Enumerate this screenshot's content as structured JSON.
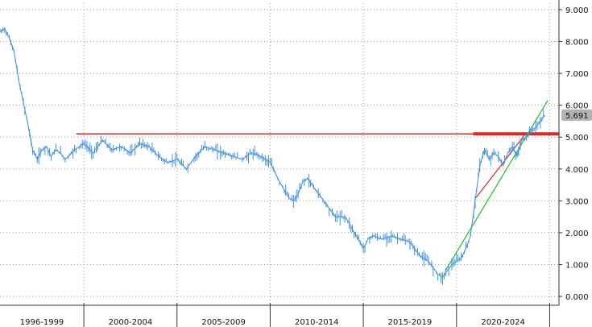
{
  "chart_data": {
    "type": "line",
    "title": "",
    "xlabel": "",
    "ylabel": "",
    "ylim": [
      -0.2,
      9.2
    ],
    "grid": true,
    "y_ticks": [
      "0.000",
      "1.000",
      "2.000",
      "3.000",
      "4.000",
      "5.000",
      "6.000",
      "7.000",
      "8.000",
      "9.000"
    ],
    "x_ticks": [
      "1996-1999",
      "2000-2004",
      "2005-2009",
      "2010-2014",
      "2015-2019",
      "2020-2024"
    ],
    "last_value_label": "5.691",
    "colors": {
      "series": "#3f8ee0",
      "resistance": "#d42a2a",
      "support": "#19c219",
      "badge_bg": "#b3b3b3",
      "grid": "#9a9a9a"
    },
    "series": [
      {
        "x": [
          1995.5,
          1995.75,
          1996,
          1996.25,
          1996.5,
          1996.75,
          1997,
          1997.25,
          1997.5,
          1997.75,
          1998,
          1998.25,
          1998.5,
          1998.75,
          1999,
          1999.5,
          2000,
          2000.5,
          2001,
          2001.5,
          2002,
          2002.5,
          2003,
          2003.5,
          2004,
          2004.5,
          2005,
          2005.5,
          2006,
          2006.5,
          2007,
          2007.5,
          2008,
          2008.5,
          2009,
          2009.5,
          2010,
          2010.5,
          2011,
          2011.25,
          2011.5,
          2011.75,
          2012,
          2012.5,
          2013,
          2013.5,
          2014,
          2014.25,
          2014.5,
          2014.75,
          2015,
          2015.25,
          2015.5,
          2016,
          2016.5,
          2017,
          2017.5,
          2018,
          2018.5,
          2019,
          2019.25,
          2019.5,
          2019.75,
          2020,
          2020.25,
          2020.5,
          2020.75,
          2021,
          2021.25,
          2021.5,
          2021.75,
          2022,
          2022.25,
          2022.5,
          2022.75,
          2023,
          2023.25,
          2023.5,
          2023.75,
          2024,
          2024.25,
          2024.5,
          2024.75
        ],
        "values": [
          8.3,
          8.4,
          8.1,
          7.7,
          6.8,
          6.1,
          5.4,
          4.6,
          4.3,
          4.6,
          4.7,
          4.4,
          4.6,
          4.5,
          4.3,
          4.6,
          4.8,
          4.5,
          4.9,
          4.6,
          4.7,
          4.5,
          4.8,
          4.7,
          4.4,
          4.2,
          4.3,
          4.0,
          4.4,
          4.7,
          4.6,
          4.5,
          4.4,
          4.3,
          4.5,
          4.4,
          4.2,
          3.6,
          3.1,
          3.0,
          3.2,
          3.6,
          3.7,
          3.3,
          2.9,
          2.5,
          2.5,
          2.3,
          2.0,
          1.8,
          1.5,
          1.8,
          1.9,
          1.8,
          1.9,
          1.8,
          1.7,
          1.3,
          1.1,
          0.7,
          0.6,
          0.8,
          1.0,
          1.1,
          1.2,
          1.5,
          1.9,
          3.0,
          4.1,
          4.6,
          4.3,
          4.5,
          4.4,
          4.1,
          4.5,
          4.7,
          4.4,
          4.9,
          5.0,
          5.2,
          5.3,
          5.5,
          5.69
        ]
      }
    ],
    "resistance_level": 5.1,
    "trendlines": [
      {
        "color": "red",
        "x": [
          2021.05,
          2023.7
        ],
        "y": [
          3.1,
          5.1
        ]
      },
      {
        "color": "green",
        "x": [
          2019.4,
          2024.9
        ],
        "y": [
          0.8,
          6.15
        ]
      }
    ]
  }
}
